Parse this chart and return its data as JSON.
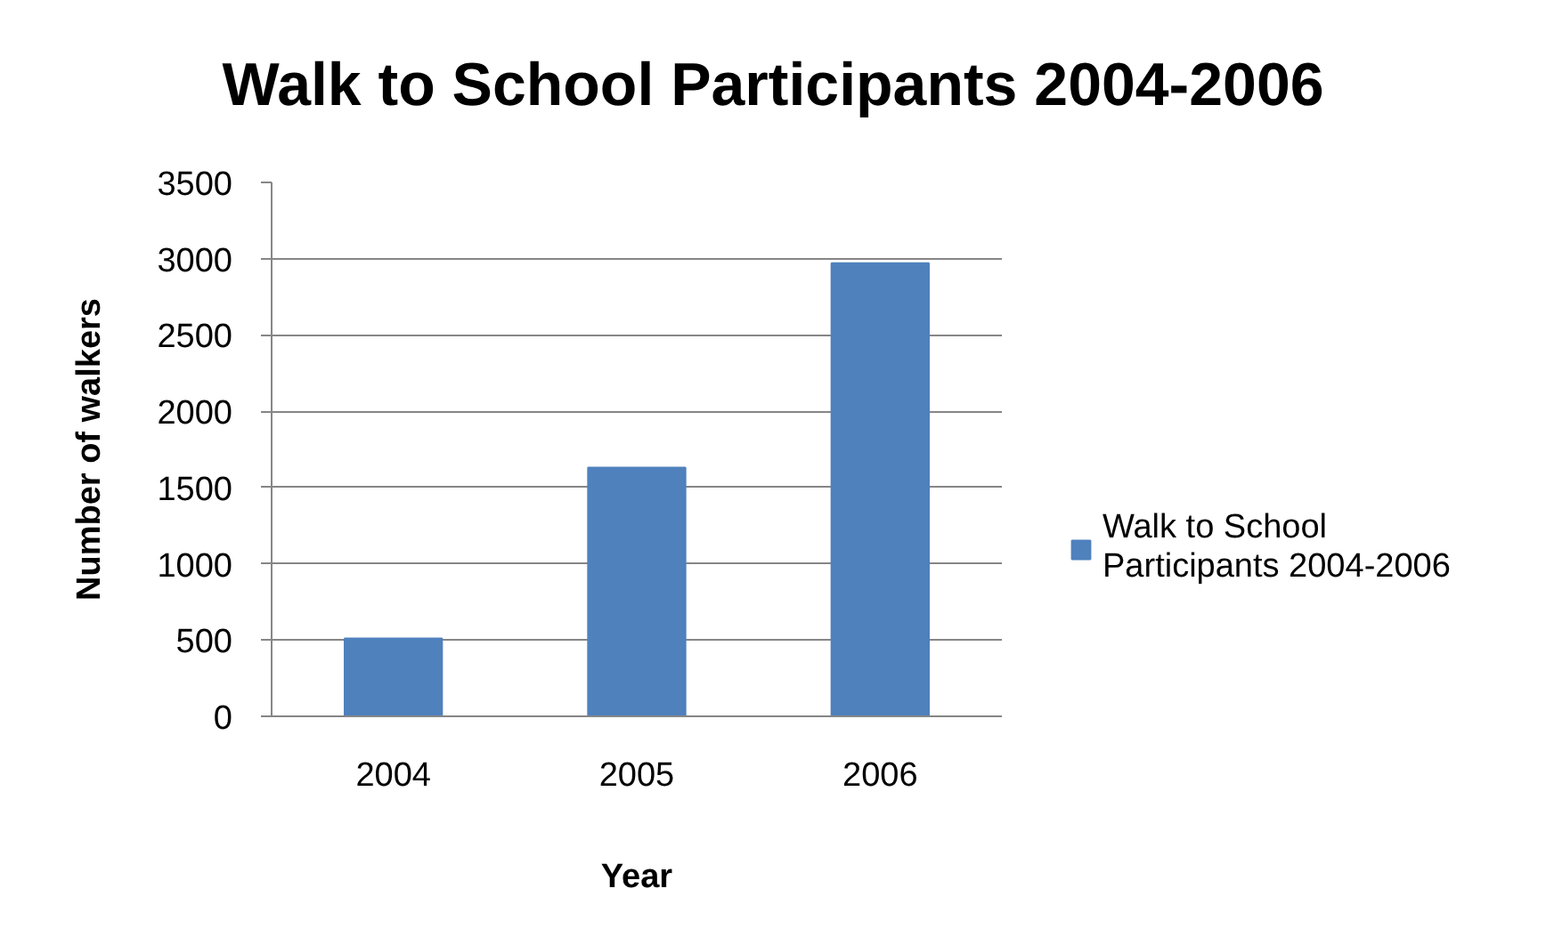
{
  "chart_data": {
    "type": "bar",
    "title": "Walk to School Participants 2004-2006",
    "xlabel": "Year",
    "ylabel": "Number of walkers",
    "categories": [
      "2004",
      "2005",
      "2006"
    ],
    "series": [
      {
        "name": "Walk to School Participants 2004-2006",
        "color": "#4f81bd",
        "values": [
          510,
          1630,
          2970
        ]
      }
    ],
    "ylim": [
      0,
      3500
    ],
    "yticks": [
      0,
      500,
      1000,
      1500,
      2000,
      2500,
      3000,
      3500
    ],
    "grid": "y",
    "legend": "right"
  }
}
